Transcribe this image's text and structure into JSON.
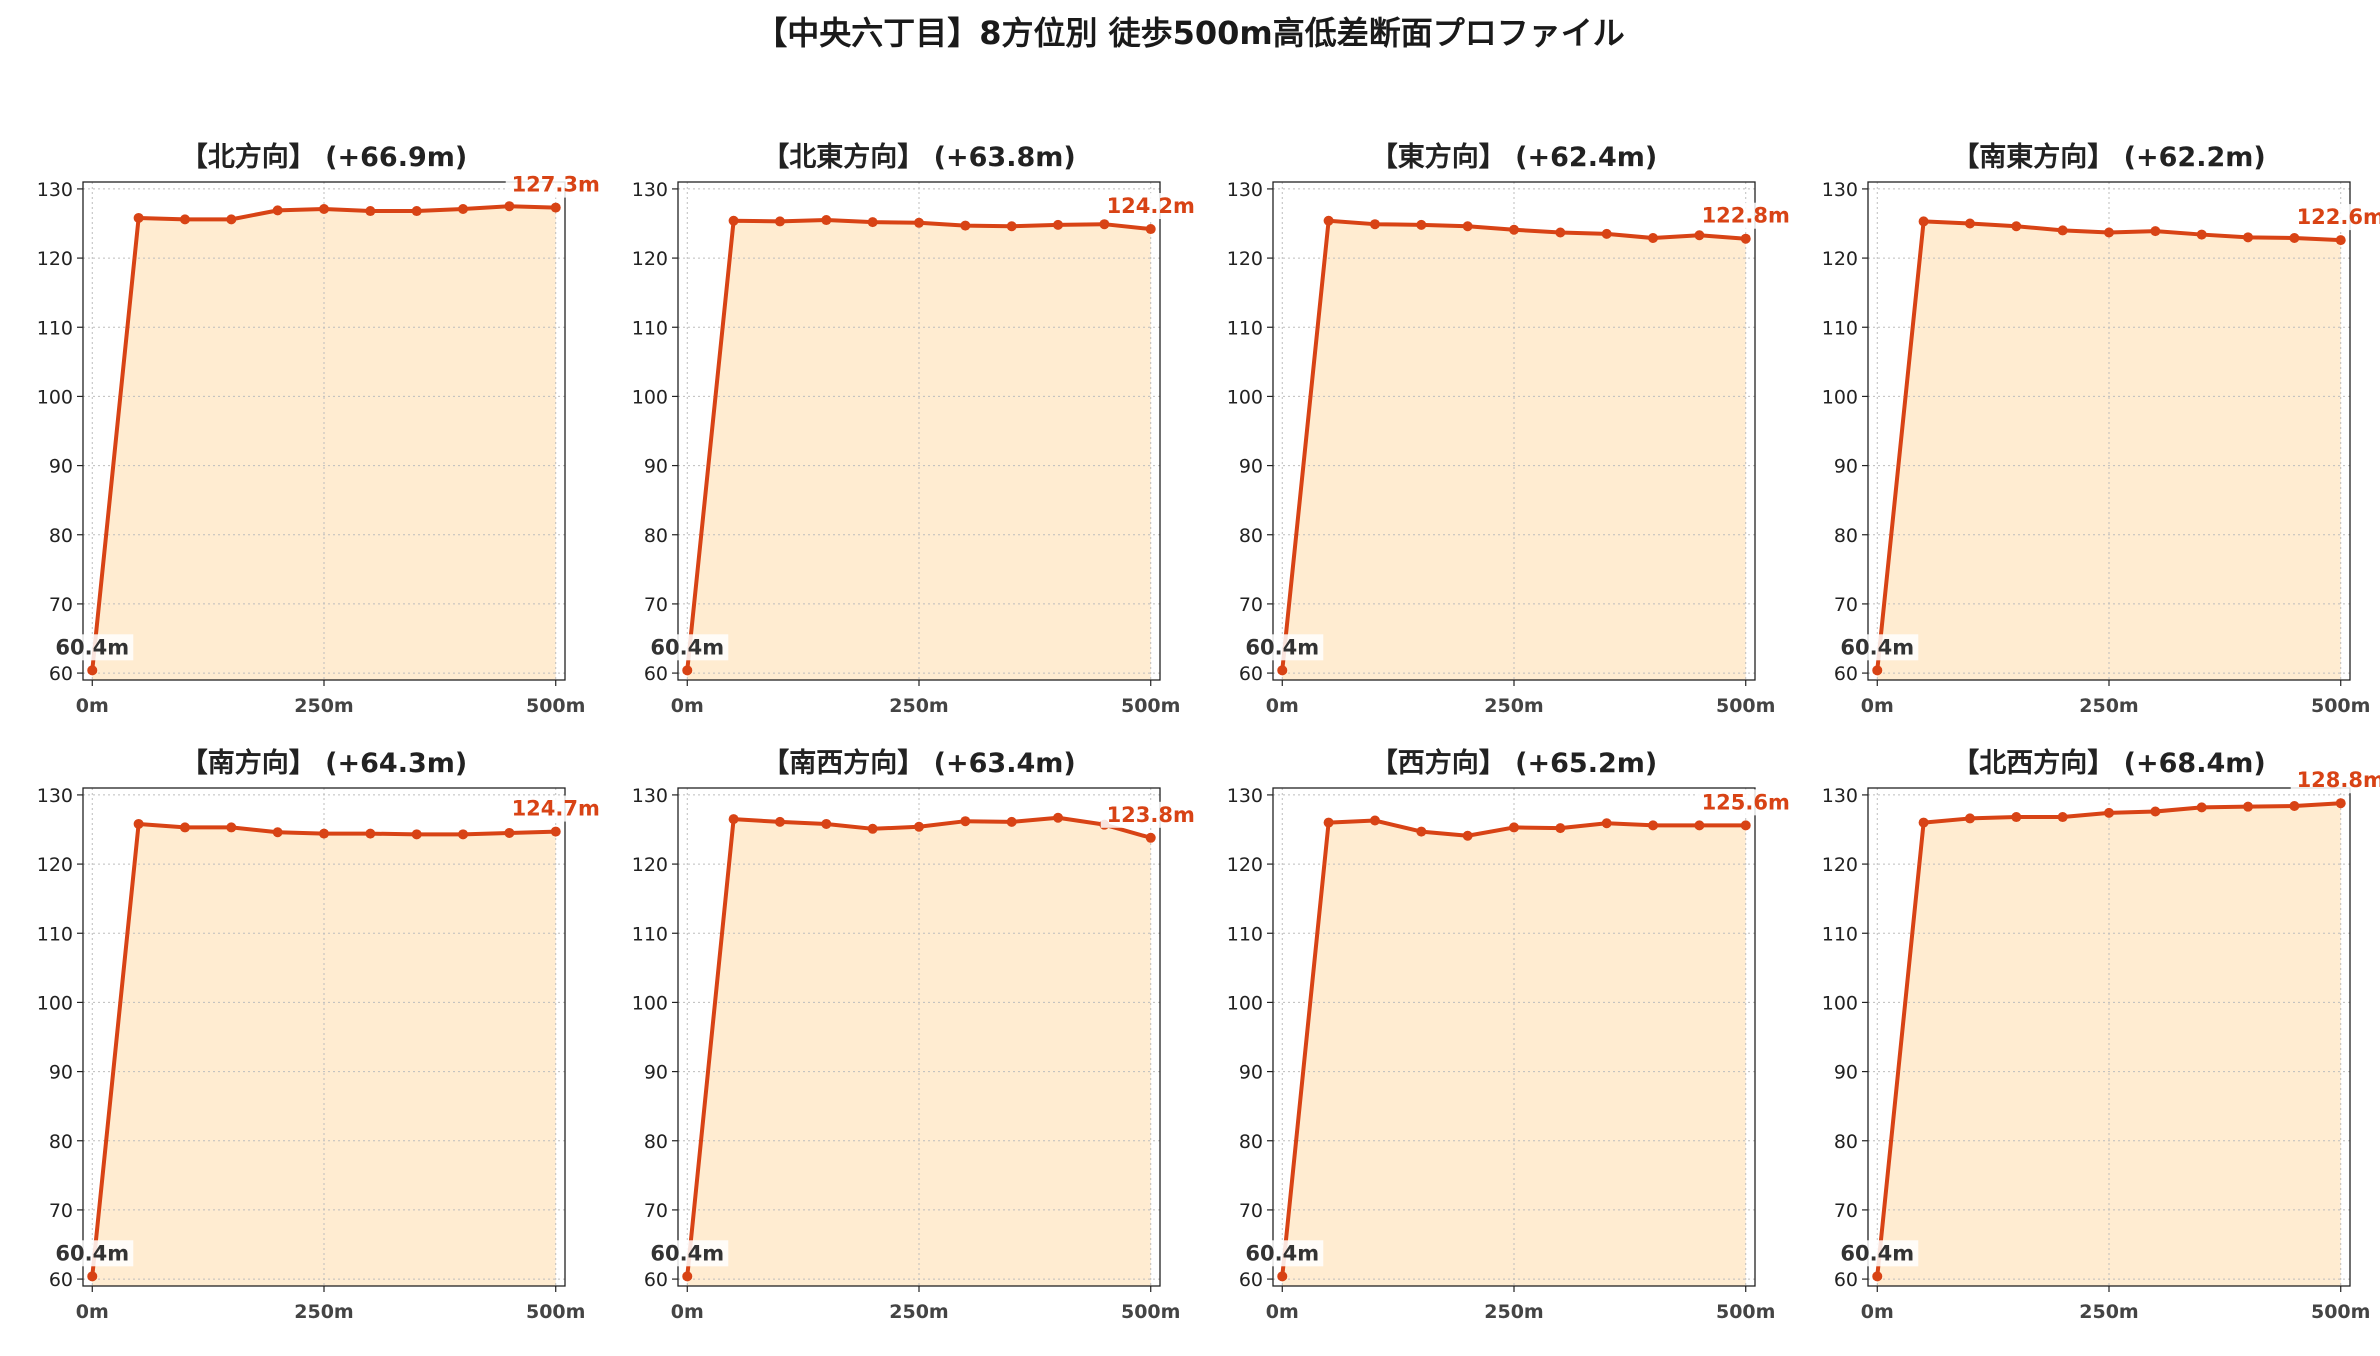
{
  "title": "【中央六丁目】8方位別 徒歩500m高低差断面プロファイル",
  "colors": {
    "line": "#d84315",
    "fill": "#ffecd1",
    "grid": "#bdbdbd"
  },
  "chart_data": [
    {
      "type": "area",
      "title": "【北方向】 (+66.9m)",
      "x": [
        0,
        50,
        100,
        150,
        200,
        250,
        300,
        350,
        400,
        450,
        500
      ],
      "values": [
        60.4,
        125.8,
        125.6,
        125.6,
        126.9,
        127.1,
        126.8,
        126.8,
        127.1,
        127.5,
        127.3
      ],
      "start_label": "60.4m",
      "end_label": "127.3m",
      "xticks": [
        "0m",
        "250m",
        "500m"
      ],
      "yticks": [
        "60",
        "70",
        "80",
        "90",
        "100",
        "110",
        "120",
        "130"
      ],
      "xlim": [
        -10,
        510
      ],
      "ylim": [
        59,
        131
      ],
      "grid": true
    },
    {
      "type": "area",
      "title": "【北東方向】 (+63.8m)",
      "x": [
        0,
        50,
        100,
        150,
        200,
        250,
        300,
        350,
        400,
        450,
        500
      ],
      "values": [
        60.4,
        125.4,
        125.3,
        125.5,
        125.2,
        125.1,
        124.7,
        124.6,
        124.8,
        124.9,
        124.2
      ],
      "start_label": "60.4m",
      "end_label": "124.2m",
      "xticks": [
        "0m",
        "250m",
        "500m"
      ],
      "yticks": [
        "60",
        "70",
        "80",
        "90",
        "100",
        "110",
        "120",
        "130"
      ],
      "xlim": [
        -10,
        510
      ],
      "ylim": [
        59,
        131
      ],
      "grid": true
    },
    {
      "type": "area",
      "title": "【東方向】 (+62.4m)",
      "x": [
        0,
        50,
        100,
        150,
        200,
        250,
        300,
        350,
        400,
        450,
        500
      ],
      "values": [
        60.4,
        125.4,
        124.9,
        124.8,
        124.6,
        124.1,
        123.7,
        123.5,
        122.9,
        123.3,
        122.8
      ],
      "start_label": "60.4m",
      "end_label": "122.8m",
      "xticks": [
        "0m",
        "250m",
        "500m"
      ],
      "yticks": [
        "60",
        "70",
        "80",
        "90",
        "100",
        "110",
        "120",
        "130"
      ],
      "xlim": [
        -10,
        510
      ],
      "ylim": [
        59,
        131
      ],
      "grid": true
    },
    {
      "type": "area",
      "title": "【南東方向】 (+62.2m)",
      "x": [
        0,
        50,
        100,
        150,
        200,
        250,
        300,
        350,
        400,
        450,
        500
      ],
      "values": [
        60.4,
        125.3,
        125.0,
        124.6,
        124.0,
        123.7,
        123.9,
        123.4,
        123.0,
        122.9,
        122.6
      ],
      "start_label": "60.4m",
      "end_label": "122.6m",
      "xticks": [
        "0m",
        "250m",
        "500m"
      ],
      "yticks": [
        "60",
        "70",
        "80",
        "90",
        "100",
        "110",
        "120",
        "130"
      ],
      "xlim": [
        -10,
        510
      ],
      "ylim": [
        59,
        131
      ],
      "grid": true
    },
    {
      "type": "area",
      "title": "【南方向】 (+64.3m)",
      "x": [
        0,
        50,
        100,
        150,
        200,
        250,
        300,
        350,
        400,
        450,
        500
      ],
      "values": [
        60.4,
        125.8,
        125.3,
        125.3,
        124.6,
        124.4,
        124.4,
        124.3,
        124.3,
        124.5,
        124.7
      ],
      "start_label": "60.4m",
      "end_label": "124.7m",
      "xticks": [
        "0m",
        "250m",
        "500m"
      ],
      "yticks": [
        "60",
        "70",
        "80",
        "90",
        "100",
        "110",
        "120",
        "130"
      ],
      "xlim": [
        -10,
        510
      ],
      "ylim": [
        59,
        131
      ],
      "grid": true
    },
    {
      "type": "area",
      "title": "【南西方向】 (+63.4m)",
      "x": [
        0,
        50,
        100,
        150,
        200,
        250,
        300,
        350,
        400,
        450,
        500
      ],
      "values": [
        60.4,
        126.5,
        126.1,
        125.8,
        125.1,
        125.4,
        126.2,
        126.1,
        126.7,
        125.7,
        123.8
      ],
      "start_label": "60.4m",
      "end_label": "123.8m",
      "xticks": [
        "0m",
        "250m",
        "500m"
      ],
      "yticks": [
        "60",
        "70",
        "80",
        "90",
        "100",
        "110",
        "120",
        "130"
      ],
      "xlim": [
        -10,
        510
      ],
      "ylim": [
        59,
        131
      ],
      "grid": true
    },
    {
      "type": "area",
      "title": "【西方向】 (+65.2m)",
      "x": [
        0,
        50,
        100,
        150,
        200,
        250,
        300,
        350,
        400,
        450,
        500
      ],
      "values": [
        60.4,
        126.0,
        126.3,
        124.7,
        124.1,
        125.3,
        125.2,
        125.9,
        125.6,
        125.6,
        125.6
      ],
      "start_label": "60.4m",
      "end_label": "125.6m",
      "xticks": [
        "0m",
        "250m",
        "500m"
      ],
      "yticks": [
        "60",
        "70",
        "80",
        "90",
        "100",
        "110",
        "120",
        "130"
      ],
      "xlim": [
        -10,
        510
      ],
      "ylim": [
        59,
        131
      ],
      "grid": true
    },
    {
      "type": "area",
      "title": "【北西方向】 (+68.4m)",
      "x": [
        0,
        50,
        100,
        150,
        200,
        250,
        300,
        350,
        400,
        450,
        500
      ],
      "values": [
        60.4,
        126.0,
        126.6,
        126.8,
        126.8,
        127.4,
        127.6,
        128.2,
        128.3,
        128.4,
        128.8
      ],
      "start_label": "60.4m",
      "end_label": "128.8m",
      "xticks": [
        "0m",
        "250m",
        "500m"
      ],
      "yticks": [
        "60",
        "70",
        "80",
        "90",
        "100",
        "110",
        "120",
        "130"
      ],
      "xlim": [
        -10,
        510
      ],
      "ylim": [
        59,
        131
      ],
      "grid": true
    }
  ]
}
